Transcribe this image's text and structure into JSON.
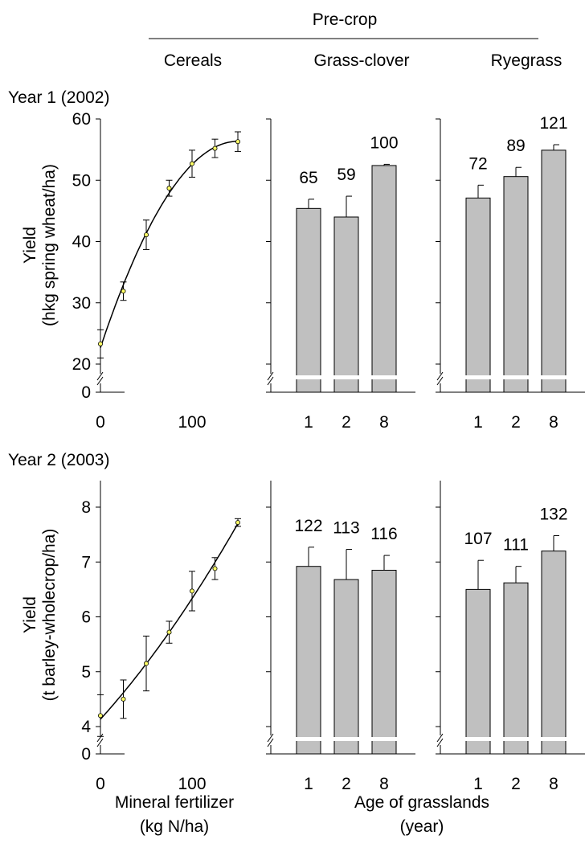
{
  "figure": {
    "header": "Pre-crop",
    "column_titles": [
      "Cereals",
      "Grass-clover",
      "Ryegrass"
    ],
    "footer_left": [
      "Mineral fertilizer",
      "(kg N/ha)"
    ],
    "footer_right": [
      "Age of grasslands",
      "(year)"
    ]
  },
  "rows": [
    {
      "label": "Year 1 (2002)",
      "ylabel": [
        "Yield",
        "(hkg spring wheat/ha)"
      ],
      "yticks": [
        "20",
        "30",
        "40",
        "50",
        "60"
      ],
      "ybreak_tick": "0"
    },
    {
      "label": "Year 2 (2003)",
      "ylabel": [
        "Yield",
        "(t barley-wholecrop/ha)"
      ],
      "yticks": [
        "4",
        "5",
        "6",
        "7",
        "8"
      ],
      "ybreak_tick": "0"
    }
  ],
  "xaxis": {
    "fert_ticks": [
      "0",
      "100"
    ],
    "age_ticks": [
      "1",
      "2",
      "8"
    ]
  },
  "colors": {
    "bar_fill": "#c0c0c0",
    "point_fill": "#ffff66",
    "axis": "#000000"
  },
  "chart_data": [
    {
      "type": "scatter",
      "panel": "Year 1 - Cereals",
      "x": [
        0,
        25,
        50,
        75,
        100,
        125,
        150
      ],
      "y": [
        23.3,
        31.9,
        41.1,
        48.7,
        52.7,
        55.2,
        56.3
      ],
      "err": [
        2.3,
        1.5,
        2.4,
        1.3,
        2.2,
        1.5,
        1.6
      ],
      "xlim": [
        0,
        150
      ],
      "ylim": [
        20,
        60
      ],
      "curve": "fitted"
    },
    {
      "type": "bar",
      "panel": "Year 1 - Grass-clover",
      "categories": [
        "1",
        "2",
        "8"
      ],
      "values": [
        45.4,
        44.0,
        52.4
      ],
      "err": [
        1.5,
        3.4,
        0.2
      ],
      "labels": [
        "65",
        "59",
        "100"
      ],
      "ylim": [
        20,
        60
      ]
    },
    {
      "type": "bar",
      "panel": "Year 1 - Ryegrass",
      "categories": [
        "1",
        "2",
        "8"
      ],
      "values": [
        47.1,
        50.6,
        54.9
      ],
      "err": [
        2.1,
        1.5,
        0.9
      ],
      "labels": [
        "72",
        "89",
        "121"
      ],
      "ylim": [
        20,
        60
      ]
    },
    {
      "type": "scatter",
      "panel": "Year 2 - Cereals",
      "x": [
        0,
        25,
        50,
        75,
        100,
        125,
        150
      ],
      "y": [
        4.2,
        4.5,
        5.15,
        5.72,
        6.47,
        6.88,
        7.72
      ],
      "err": [
        0.38,
        0.35,
        0.5,
        0.2,
        0.36,
        0.2,
        0.07
      ],
      "xlim": [
        0,
        150
      ],
      "ylim": [
        4,
        8
      ],
      "curve": "fitted"
    },
    {
      "type": "bar",
      "panel": "Year 2 - Grass-clover",
      "categories": [
        "1",
        "2",
        "8"
      ],
      "values": [
        6.92,
        6.68,
        6.85
      ],
      "err": [
        0.35,
        0.55,
        0.27
      ],
      "labels": [
        "122",
        "113",
        "116"
      ],
      "ylim": [
        4,
        8
      ]
    },
    {
      "type": "bar",
      "panel": "Year 2 - Ryegrass",
      "categories": [
        "1",
        "2",
        "8"
      ],
      "values": [
        6.5,
        6.62,
        7.2
      ],
      "err": [
        0.53,
        0.3,
        0.28
      ],
      "labels": [
        "107",
        "111",
        "132"
      ],
      "ylim": [
        4,
        8
      ]
    }
  ]
}
